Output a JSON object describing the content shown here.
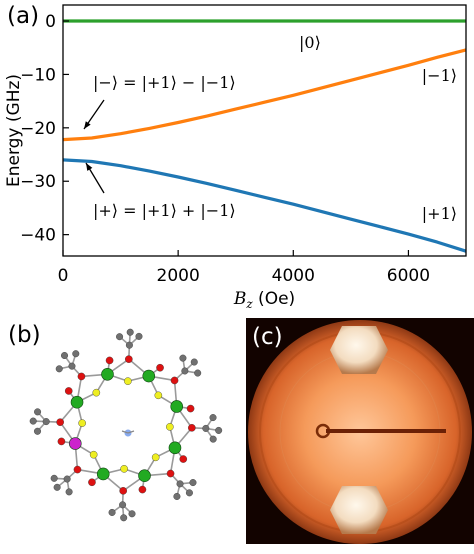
{
  "panel_a": {
    "label": "(a)",
    "chart_data": {
      "type": "line",
      "xlabel_var": "B",
      "xlabel_sub": "z",
      "xlabel_unit": " (Oe)",
      "ylabel": "Energy (GHz)",
      "xlim": [
        0,
        7000
      ],
      "ylim": [
        -44,
        3
      ],
      "x_ticks": [
        0,
        2000,
        4000,
        6000
      ],
      "x_tick_labels": [
        "0",
        "2000",
        "4000",
        "6000"
      ],
      "y_ticks": [
        0,
        -10,
        -20,
        -30,
        -40
      ],
      "y_tick_labels": [
        "0",
        "−10",
        "−20",
        "−30",
        "−40"
      ],
      "grid": false,
      "series": [
        {
          "name": "|0⟩",
          "color": "#2ca02c",
          "x": [
            0,
            1000,
            2000,
            3000,
            4000,
            5000,
            6000,
            7000
          ],
          "y": [
            0,
            0,
            0,
            0,
            0,
            0,
            0,
            0
          ]
        },
        {
          "name": "|−1⟩",
          "color": "#ff7f0e",
          "x": [
            0,
            500,
            1000,
            1500,
            2000,
            2500,
            3000,
            3500,
            4000,
            4500,
            5000,
            5500,
            6000,
            6500,
            7000
          ],
          "y": [
            -22.2,
            -21.9,
            -21.1,
            -20.1,
            -19.0,
            -17.8,
            -16.5,
            -15.2,
            -13.9,
            -12.5,
            -11.1,
            -9.7,
            -8.3,
            -6.8,
            -5.4
          ]
        },
        {
          "name": "|+1⟩",
          "color": "#1f77b4",
          "x": [
            0,
            500,
            1000,
            1500,
            2000,
            2500,
            3000,
            3500,
            4000,
            4500,
            5000,
            5500,
            6000,
            6500,
            7000
          ],
          "y": [
            -26.0,
            -26.3,
            -27.1,
            -28.1,
            -29.2,
            -30.4,
            -31.7,
            -33.0,
            -34.3,
            -35.7,
            -37.1,
            -38.5,
            -39.9,
            -41.4,
            -43.1
          ]
        }
      ],
      "annotations": {
        "ket_zero": "|0⟩",
        "ket_minus_one": "|−1⟩",
        "ket_plus_one": "|+1⟩",
        "minus_state": "|−⟩ = |+1⟩ − |−1⟩",
        "plus_state": "|+⟩ = |+1⟩ + |−1⟩"
      }
    }
  },
  "panel_b": {
    "label": "(b)",
    "atom_colors": {
      "metal_green": "#22aa22",
      "metal_magenta": "#cc22cc",
      "oxygen": "#dd1111",
      "fluorine": "#eeee22",
      "carbon": "#707070",
      "nitrogen": "#88aaee"
    }
  },
  "panel_c": {
    "label": "(c)",
    "colors": {
      "glow": "#f28a4a",
      "dark": "#1a0500"
    }
  }
}
